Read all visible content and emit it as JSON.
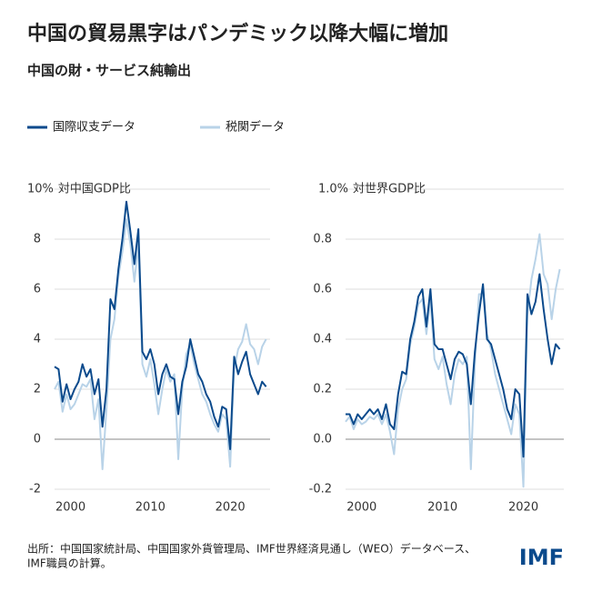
{
  "header": {
    "title": "中国の貿易黒字はパンデミック以降大幅に増加",
    "subtitle": "中国の財・サービス純輸出"
  },
  "chart_data": [
    {
      "type": "line",
      "ylabel": "対中国GDP比",
      "x": [
        1998,
        1998.5,
        1999,
        1999.5,
        2000,
        2000.5,
        2001,
        2001.5,
        2002,
        2002.5,
        2003,
        2003.5,
        2004,
        2004.5,
        2005,
        2005.5,
        2006,
        2006.5,
        2007,
        2007.5,
        2008,
        2008.5,
        2009,
        2009.5,
        2010,
        2010.5,
        2011,
        2011.5,
        2012,
        2012.5,
        2013,
        2013.5,
        2014,
        2014.5,
        2015,
        2015.5,
        2016,
        2016.5,
        2017,
        2017.5,
        2018,
        2018.5,
        2019,
        2019.5,
        2020,
        2020.5,
        2021,
        2021.5,
        2022,
        2022.5,
        2023,
        2023.5,
        2024,
        2024.5
      ],
      "xlim": [
        1998,
        2025
      ],
      "xticks": [
        2000,
        2010,
        2020
      ],
      "ylim": [
        -2,
        10
      ],
      "yticks": [
        -2,
        0,
        2,
        4,
        6,
        8,
        {
          "value": 10,
          "label": "10%"
        }
      ],
      "grid": true,
      "series": [
        {
          "name": "国際収支データ",
          "color": "#0b4a8c",
          "values": [
            2.9,
            2.8,
            1.5,
            2.2,
            1.6,
            2.0,
            2.3,
            3.0,
            2.5,
            2.8,
            1.8,
            2.4,
            0.5,
            2.0,
            5.6,
            5.2,
            6.8,
            8.0,
            9.5,
            8.3,
            7.0,
            8.4,
            3.5,
            3.2,
            3.6,
            3.0,
            1.8,
            2.6,
            3.0,
            2.5,
            2.4,
            1.0,
            2.3,
            2.9,
            4.0,
            3.3,
            2.6,
            2.3,
            1.8,
            1.5,
            0.9,
            0.5,
            1.3,
            1.2,
            -0.4,
            3.3,
            2.6,
            3.1,
            3.5,
            2.6,
            2.2,
            1.8,
            2.3,
            2.1
          ]
        },
        {
          "name": "税関データ",
          "color": "#b9d3e8",
          "values": [
            2.0,
            2.3,
            1.1,
            1.8,
            1.2,
            1.4,
            1.8,
            2.2,
            2.1,
            2.4,
            0.8,
            1.6,
            -1.2,
            1.2,
            4.0,
            4.8,
            6.5,
            7.5,
            8.8,
            7.8,
            6.3,
            7.8,
            3.0,
            2.5,
            3.2,
            2.2,
            1.0,
            2.0,
            2.8,
            2.3,
            2.6,
            -0.8,
            2.0,
            3.4,
            3.8,
            3.0,
            2.4,
            1.8,
            1.5,
            1.0,
            0.6,
            0.3,
            1.0,
            0.8,
            -1.1,
            2.8,
            3.6,
            3.9,
            4.6,
            3.8,
            3.6,
            3.0,
            3.7,
            4.0
          ]
        }
      ]
    },
    {
      "type": "line",
      "ylabel": "対世界GDP比",
      "x": [
        1998,
        1998.5,
        1999,
        1999.5,
        2000,
        2000.5,
        2001,
        2001.5,
        2002,
        2002.5,
        2003,
        2003.5,
        2004,
        2004.5,
        2005,
        2005.5,
        2006,
        2006.5,
        2007,
        2007.5,
        2008,
        2008.5,
        2009,
        2009.5,
        2010,
        2010.5,
        2011,
        2011.5,
        2012,
        2012.5,
        2013,
        2013.5,
        2014,
        2014.5,
        2015,
        2015.5,
        2016,
        2016.5,
        2017,
        2017.5,
        2018,
        2018.5,
        2019,
        2019.5,
        2020,
        2020.5,
        2021,
        2021.5,
        2022,
        2022.5,
        2023,
        2023.5,
        2024,
        2024.5
      ],
      "xlim": [
        1998,
        2025
      ],
      "xticks": [
        2000,
        2010,
        2020
      ],
      "ylim": [
        -0.2,
        1.0
      ],
      "yticks": [
        -0.2,
        {
          "value": 0,
          "label": "0.0"
        },
        0.2,
        0.4,
        0.6,
        0.8,
        {
          "value": 1.0,
          "label": "1.0%"
        }
      ],
      "grid": true,
      "series": [
        {
          "name": "国際収支データ",
          "color": "#0b4a8c",
          "values": [
            0.1,
            0.1,
            0.06,
            0.1,
            0.08,
            0.1,
            0.12,
            0.1,
            0.12,
            0.08,
            0.14,
            0.06,
            0.04,
            0.18,
            0.27,
            0.26,
            0.4,
            0.47,
            0.57,
            0.6,
            0.45,
            0.6,
            0.38,
            0.36,
            0.36,
            0.3,
            0.24,
            0.32,
            0.35,
            0.34,
            0.3,
            0.14,
            0.35,
            0.5,
            0.62,
            0.4,
            0.38,
            0.32,
            0.26,
            0.2,
            0.12,
            0.08,
            0.2,
            0.18,
            -0.07,
            0.58,
            0.5,
            0.55,
            0.66,
            0.52,
            0.4,
            0.3,
            0.38,
            0.36
          ]
        },
        {
          "name": "税関データ",
          "color": "#b9d3e8",
          "values": [
            0.07,
            0.09,
            0.04,
            0.08,
            0.06,
            0.07,
            0.09,
            0.08,
            0.1,
            0.06,
            0.1,
            0.03,
            -0.06,
            0.12,
            0.2,
            0.24,
            0.38,
            0.45,
            0.54,
            0.56,
            0.42,
            0.56,
            0.32,
            0.28,
            0.33,
            0.22,
            0.14,
            0.26,
            0.32,
            0.3,
            0.33,
            -0.12,
            0.3,
            0.58,
            0.58,
            0.42,
            0.36,
            0.26,
            0.2,
            0.14,
            0.08,
            0.02,
            0.14,
            0.1,
            -0.19,
            0.5,
            0.64,
            0.72,
            0.82,
            0.66,
            0.62,
            0.48,
            0.6,
            0.68
          ]
        }
      ]
    }
  ],
  "footer": {
    "source": [
      "出所：中国国家統計局、中国国家外貨管理局、IMF世界経済見通し（WEO）データベース、",
      "IMF職員の計算。"
    ],
    "logo": "IMF"
  }
}
